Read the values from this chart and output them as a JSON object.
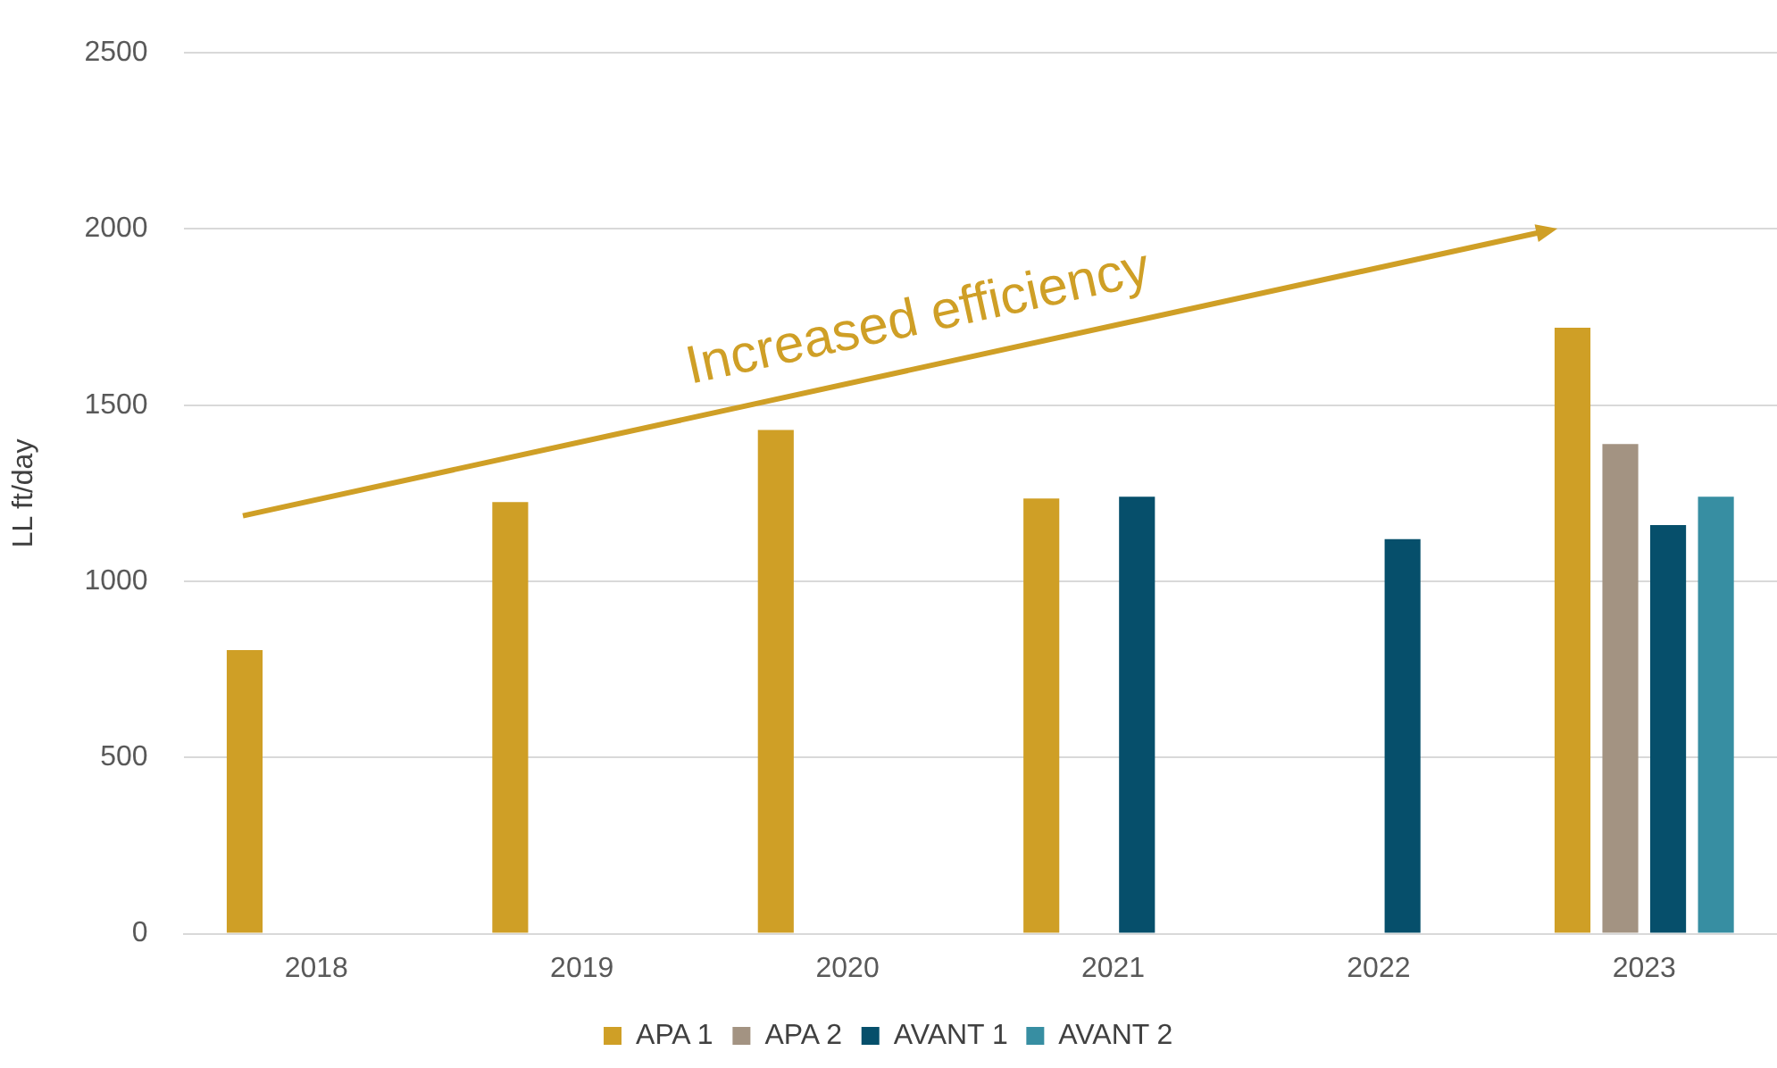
{
  "chart_data": {
    "type": "bar",
    "ylabel": "LL ft/day",
    "categories": [
      "2018",
      "2019",
      "2020",
      "2021",
      "2022",
      "2023"
    ],
    "series": [
      {
        "name": "APA 1",
        "color": "#cf9f26",
        "values": [
          805,
          1225,
          1430,
          1235,
          null,
          1720
        ]
      },
      {
        "name": "APA 2",
        "color": "#a39382",
        "values": [
          null,
          null,
          null,
          null,
          null,
          1390
        ]
      },
      {
        "name": "AVANT 1",
        "color": "#064f6b",
        "values": [
          null,
          null,
          null,
          1240,
          1120,
          1160
        ]
      },
      {
        "name": "AVANT 2",
        "color": "#378ea2",
        "values": [
          null,
          null,
          null,
          null,
          null,
          1240
        ]
      }
    ],
    "ylim": [
      0,
      2500
    ],
    "yticks": [
      0,
      500,
      1000,
      1500,
      2000,
      2500
    ],
    "grid": "y",
    "legend": "bottom",
    "annotations": [
      "Increased efficiency"
    ]
  }
}
